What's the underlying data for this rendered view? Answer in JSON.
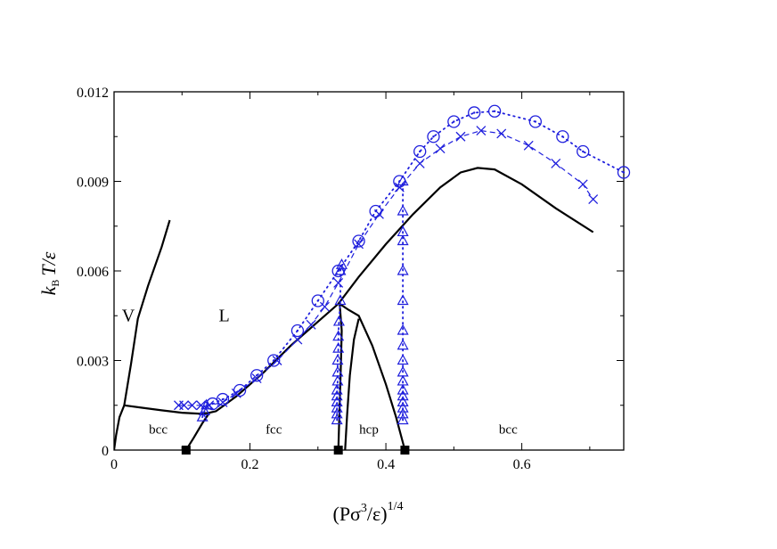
{
  "chart_data": {
    "type": "line",
    "xlim": [
      0,
      0.75
    ],
    "ylim": [
      0,
      0.012
    ],
    "x_ticks": [
      "0",
      "0.2",
      "0.4",
      "0.6"
    ],
    "x_tick_values": [
      0,
      0.2,
      0.4,
      0.6
    ],
    "y_ticks": [
      "0",
      "0.003",
      "0.006",
      "0.009",
      "0.012"
    ],
    "y_tick_values": [
      0,
      0.003,
      0.006,
      0.009,
      0.012
    ],
    "xlabel": {
      "main": "(Pσ",
      "sup1": "3",
      "mid": "/ε)",
      "sup2": "1/4"
    },
    "ylabel": {
      "k": "k",
      "sub": "B",
      "rest": "T/ε"
    },
    "grid": false,
    "region_labels": [
      {
        "text": "V",
        "x": 0.021,
        "y": 0.0045
      },
      {
        "text": "L",
        "x": 0.162,
        "y": 0.0045
      },
      {
        "text": "bcc",
        "x": 0.065,
        "y": 0.0007
      },
      {
        "text": "fcc",
        "x": 0.235,
        "y": 0.0007
      },
      {
        "text": "hcp",
        "x": 0.375,
        "y": 0.0007
      },
      {
        "text": "bcc",
        "x": 0.58,
        "y": 0.0007
      }
    ],
    "series": [
      {
        "style": "solid",
        "color": "#000000",
        "points": [
          [
            0.0,
            0.0
          ],
          [
            0.003,
            0.0005
          ],
          [
            0.008,
            0.0011
          ],
          [
            0.015,
            0.0015
          ],
          [
            0.04,
            0.00142
          ],
          [
            0.07,
            0.00133
          ],
          [
            0.1,
            0.00125
          ],
          [
            0.125,
            0.00122
          ],
          [
            0.138,
            0.00124
          ],
          [
            0.15,
            0.0013
          ],
          [
            0.18,
            0.0018
          ],
          [
            0.22,
            0.0026
          ],
          [
            0.26,
            0.0035
          ],
          [
            0.3,
            0.0043
          ],
          [
            0.33,
            0.0049
          ],
          [
            0.36,
            0.0058
          ],
          [
            0.4,
            0.0069
          ],
          [
            0.44,
            0.0079
          ],
          [
            0.48,
            0.0088
          ],
          [
            0.51,
            0.0093
          ],
          [
            0.535,
            0.00945
          ],
          [
            0.56,
            0.0094
          ],
          [
            0.6,
            0.0089
          ],
          [
            0.65,
            0.0081
          ],
          [
            0.705,
            0.0073
          ]
        ]
      },
      {
        "style": "solid",
        "color": "#000000",
        "points": [
          [
            0.015,
            0.0015
          ],
          [
            0.025,
            0.0029
          ],
          [
            0.035,
            0.0044
          ],
          [
            0.05,
            0.0055
          ],
          [
            0.07,
            0.0068
          ],
          [
            0.082,
            0.0077
          ]
        ]
      },
      {
        "style": "solid",
        "color": "#000000",
        "points": [
          [
            0.106,
            0.0
          ],
          [
            0.117,
            0.0004
          ],
          [
            0.13,
            0.0009
          ],
          [
            0.14,
            0.00124
          ]
        ]
      },
      {
        "style": "solid",
        "color": "#000000",
        "points": [
          [
            0.33,
            0.0
          ],
          [
            0.332,
            0.0015
          ],
          [
            0.334,
            0.003
          ],
          [
            0.335,
            0.004
          ],
          [
            0.332,
            0.0049
          ]
        ]
      },
      {
        "style": "solid",
        "color": "#000000",
        "points": [
          [
            0.332,
            0.0049
          ],
          [
            0.345,
            0.0047
          ],
          [
            0.36,
            0.0045
          ],
          [
            0.38,
            0.0035
          ],
          [
            0.4,
            0.0022
          ],
          [
            0.415,
            0.0011
          ],
          [
            0.428,
            0.0
          ]
        ]
      },
      {
        "style": "solid",
        "color": "#000000",
        "points": [
          [
            0.34,
            0.0
          ],
          [
            0.343,
            0.0012
          ],
          [
            0.347,
            0.0025
          ],
          [
            0.353,
            0.0037
          ],
          [
            0.36,
            0.0044
          ]
        ]
      },
      {
        "style": "dashed",
        "color": "#1f1fdd",
        "marker": "x",
        "points": [
          [
            0.095,
            0.0015
          ],
          [
            0.103,
            0.0015
          ],
          [
            0.115,
            0.0015
          ],
          [
            0.128,
            0.0015
          ],
          [
            0.14,
            0.0015
          ],
          [
            0.16,
            0.0016
          ],
          [
            0.18,
            0.0019
          ],
          [
            0.21,
            0.0024
          ],
          [
            0.24,
            0.003
          ],
          [
            0.27,
            0.0037
          ],
          [
            0.29,
            0.0042
          ],
          [
            0.31,
            0.0048
          ],
          [
            0.33,
            0.0056
          ],
          [
            0.36,
            0.0069
          ],
          [
            0.39,
            0.0079
          ],
          [
            0.42,
            0.0088
          ],
          [
            0.45,
            0.0096
          ],
          [
            0.48,
            0.0101
          ],
          [
            0.51,
            0.0105
          ],
          [
            0.54,
            0.0107
          ],
          [
            0.57,
            0.0106
          ],
          [
            0.61,
            0.0102
          ],
          [
            0.65,
            0.0096
          ],
          [
            0.69,
            0.0089
          ],
          [
            0.705,
            0.0084
          ]
        ]
      },
      {
        "style": "dotted",
        "color": "#1f1fdd",
        "marker": "o",
        "points": [
          [
            0.145,
            0.00155
          ],
          [
            0.16,
            0.0017
          ],
          [
            0.185,
            0.002
          ],
          [
            0.21,
            0.0025
          ],
          [
            0.235,
            0.003
          ],
          [
            0.27,
            0.004
          ],
          [
            0.3,
            0.005
          ],
          [
            0.33,
            0.006
          ],
          [
            0.36,
            0.007
          ],
          [
            0.385,
            0.008
          ],
          [
            0.42,
            0.009
          ],
          [
            0.45,
            0.01
          ],
          [
            0.47,
            0.0105
          ],
          [
            0.5,
            0.011
          ],
          [
            0.53,
            0.0113
          ],
          [
            0.56,
            0.01135
          ],
          [
            0.62,
            0.011
          ],
          [
            0.66,
            0.0105
          ],
          [
            0.69,
            0.01
          ],
          [
            0.75,
            0.0093
          ]
        ]
      },
      {
        "style": "dotted",
        "color": "#1f1fdd",
        "marker": "triangle",
        "points": [
          [
            0.13,
            0.0011
          ],
          [
            0.133,
            0.0013
          ],
          [
            0.136,
            0.0015
          ]
        ]
      },
      {
        "style": "dotted",
        "color": "#1f1fdd",
        "marker": "triangle",
        "points": [
          [
            0.328,
            0.001
          ],
          [
            0.328,
            0.0012
          ],
          [
            0.328,
            0.0014
          ],
          [
            0.328,
            0.0016
          ],
          [
            0.328,
            0.0018
          ],
          [
            0.328,
            0.002
          ],
          [
            0.329,
            0.0023
          ],
          [
            0.329,
            0.0026
          ],
          [
            0.329,
            0.003
          ],
          [
            0.33,
            0.0034
          ],
          [
            0.33,
            0.0038
          ],
          [
            0.331,
            0.0043
          ],
          [
            0.333,
            0.005
          ],
          [
            0.333,
            0.006
          ],
          [
            0.335,
            0.0062
          ]
        ]
      },
      {
        "style": "dotted",
        "color": "#1f1fdd",
        "marker": "triangle",
        "points": [
          [
            0.425,
            0.001
          ],
          [
            0.425,
            0.0012
          ],
          [
            0.425,
            0.0014
          ],
          [
            0.425,
            0.0016
          ],
          [
            0.425,
            0.0018
          ],
          [
            0.425,
            0.002
          ],
          [
            0.425,
            0.0023
          ],
          [
            0.425,
            0.0026
          ],
          [
            0.425,
            0.003
          ],
          [
            0.425,
            0.0035
          ],
          [
            0.425,
            0.004
          ],
          [
            0.425,
            0.005
          ],
          [
            0.425,
            0.006
          ],
          [
            0.425,
            0.007
          ],
          [
            0.425,
            0.0073
          ],
          [
            0.425,
            0.008
          ],
          [
            0.425,
            0.009
          ]
        ]
      },
      {
        "style": "none",
        "color": "#000000",
        "marker": "square",
        "points": [
          [
            0.106,
            0.0
          ],
          [
            0.33,
            0.0
          ],
          [
            0.428,
            0.0
          ]
        ]
      }
    ]
  }
}
